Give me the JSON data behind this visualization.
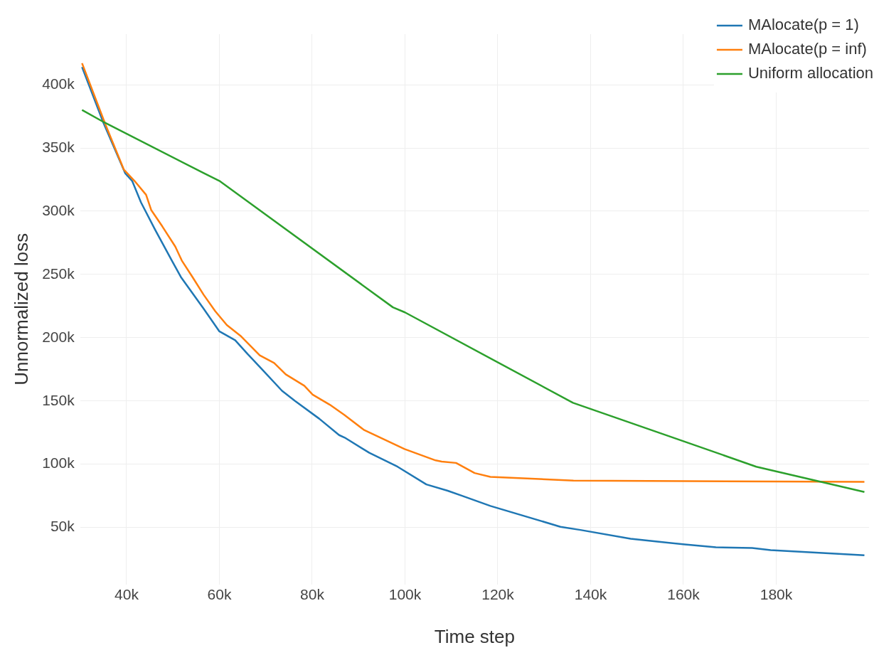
{
  "chart_data": {
    "type": "line",
    "xlabel": "Time step",
    "ylabel": "Unnormalized loss",
    "xlim": [
      30000,
      200000
    ],
    "ylim": [
      5000,
      440000
    ],
    "xticks": [
      {
        "value": 40000,
        "label": "40k"
      },
      {
        "value": 60000,
        "label": "60k"
      },
      {
        "value": 80000,
        "label": "80k"
      },
      {
        "value": 100000,
        "label": "100k"
      },
      {
        "value": 120000,
        "label": "120k"
      },
      {
        "value": 140000,
        "label": "140k"
      },
      {
        "value": 160000,
        "label": "160k"
      },
      {
        "value": 180000,
        "label": "180k"
      }
    ],
    "yticks": [
      {
        "value": 50000,
        "label": "50k"
      },
      {
        "value": 100000,
        "label": "100k"
      },
      {
        "value": 150000,
        "label": "150k"
      },
      {
        "value": 200000,
        "label": "200k"
      },
      {
        "value": 250000,
        "label": "250k"
      },
      {
        "value": 300000,
        "label": "300k"
      },
      {
        "value": 350000,
        "label": "350k"
      },
      {
        "value": 400000,
        "label": "400k"
      }
    ],
    "grid": true,
    "legend": "top right",
    "marker": "none",
    "line_style": "solid",
    "series": [
      {
        "name": "MAlocate(p = 1)",
        "color": "#1f77b4",
        "x": [
          30400,
          35000,
          39700,
          41200,
          43100,
          46200,
          49900,
          51700,
          56600,
          60000,
          63400,
          66100,
          69200,
          73500,
          76300,
          81500,
          85800,
          87000,
          92300,
          98400,
          104600,
          109200,
          112300,
          118400,
          133500,
          137800,
          148600,
          160300,
          167000,
          174800,
          178800,
          199000
        ],
        "values": [
          414000,
          370000,
          330000,
          324000,
          307000,
          285000,
          260000,
          248000,
          223000,
          205000,
          198000,
          187000,
          175000,
          158000,
          150000,
          136000,
          123000,
          121000,
          109000,
          98000,
          84000,
          79000,
          75000,
          67000,
          50500,
          48000,
          41000,
          36500,
          34300,
          33700,
          32000,
          28000
        ]
      },
      {
        "name": "MAlocate(p = inf)",
        "color": "#ff7f0e",
        "x": [
          30400,
          35500,
          39400,
          41700,
          44200,
          45300,
          47700,
          50500,
          51900,
          54200,
          56600,
          59100,
          61600,
          64700,
          68700,
          71800,
          74300,
          78300,
          80100,
          83800,
          86900,
          91200,
          99900,
          106600,
          107900,
          111000,
          115000,
          118400,
          136300,
          199000
        ],
        "values": [
          417000,
          368000,
          333000,
          324000,
          313000,
          301000,
          288000,
          272000,
          261000,
          248000,
          234000,
          221000,
          210000,
          201000,
          186000,
          180000,
          171000,
          162000,
          155000,
          147000,
          139000,
          127000,
          112000,
          103000,
          102000,
          101000,
          93000,
          90000,
          87000,
          86000
        ]
      },
      {
        "name": "Uniform allocation",
        "color": "#2ca02c",
        "x": [
          30400,
          35300,
          56700,
          60000,
          97400,
          100000,
          136200,
          157800,
          175700,
          199000
        ],
        "values": [
          380000,
          370000,
          330000,
          324000,
          224000,
          220000,
          148500,
          121000,
          98000,
          78000
        ]
      }
    ]
  }
}
